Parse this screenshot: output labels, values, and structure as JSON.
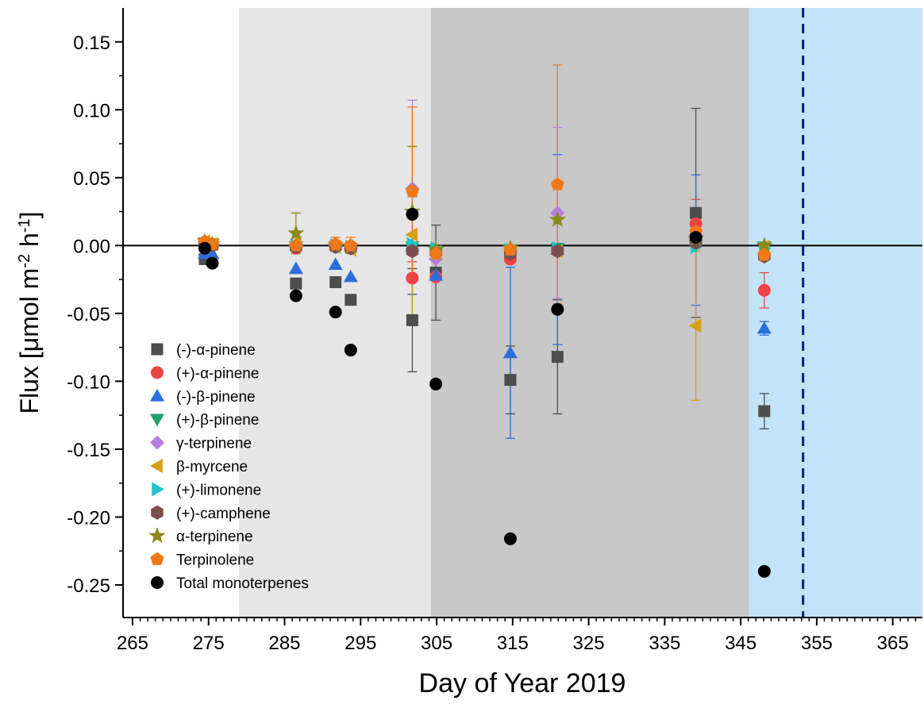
{
  "chart_data": {
    "type": "scatter",
    "xlabel": "Day of Year 2019",
    "ylabel_parts": [
      "Flux [μmol m",
      "-2",
      " h",
      "-1",
      "]"
    ],
    "xlim": [
      263.75,
      368.9
    ],
    "ylim": [
      -0.274,
      0.175
    ],
    "xticks": [
      265,
      275,
      285,
      295,
      305,
      315,
      325,
      335,
      345,
      355,
      365
    ],
    "yticks": [
      0.15,
      {
        "value": 0.1,
        "label": "0.10"
      },
      0.05,
      {
        "value": 0,
        "label": "0.00"
      },
      -0.05,
      {
        "value": -0.1,
        "label": "-0.10"
      },
      -0.15,
      {
        "value": -0.2,
        "label": "-0.20"
      },
      -0.25
    ],
    "spans": [
      {
        "start": 279.0,
        "end": 304.25,
        "color": "#e6e6e6"
      },
      {
        "start": 304.25,
        "end": 346.1,
        "color": "#c8c8c8"
      },
      {
        "start": 346.1,
        "end": 368.9,
        "color": "#c3e4f8"
      }
    ],
    "vline": {
      "x": 353.2,
      "color": "#0c1f7a"
    },
    "x": [
      274.5,
      275.5,
      286.5,
      291.7,
      293.7,
      301.8,
      304.9,
      314.7,
      320.9,
      339.1,
      348.1
    ],
    "series": [
      {
        "name": "(-)-α-pinene",
        "marker": "square",
        "color": "#4d4d4d",
        "values": [
          -0.01,
          0.001,
          -0.028,
          -0.027,
          -0.04,
          -0.055,
          -0.02,
          -0.099,
          -0.082,
          0.024,
          -0.122
        ],
        "errors": [
          null,
          null,
          0.003,
          0.004,
          null,
          0.038,
          0.035,
          0.025,
          0.042,
          0.077,
          0.013
        ]
      },
      {
        "name": "(+)-α-pinene",
        "marker": "circle",
        "color": "#ef4444",
        "values": [
          0.002,
          0.0,
          -0.002,
          0.0,
          -0.002,
          -0.024,
          -0.023,
          -0.01,
          -0.003,
          0.016,
          -0.033
        ],
        "errors": [
          null,
          null,
          null,
          null,
          null,
          0.012,
          null,
          null,
          null,
          0.018,
          0.013
        ]
      },
      {
        "name": "(-)-β-pinene",
        "marker": "tri-up",
        "color": "#2a6fdb",
        "values": [
          -0.006,
          -0.006,
          -0.017,
          -0.014,
          -0.023,
          0.0,
          -0.022,
          -0.079,
          -0.003,
          0.004,
          -0.061
        ],
        "errors": [
          null,
          null,
          null,
          null,
          null,
          0.036,
          null,
          0.063,
          0.07,
          0.048,
          0.005
        ]
      },
      {
        "name": "(+)-β-pinene",
        "marker": "tri-down",
        "color": "#22a06b",
        "values": [
          0.002,
          0.001,
          -0.001,
          -0.001,
          -0.002,
          -0.001,
          -0.004,
          -0.003,
          -0.002,
          0.0,
          -0.001
        ],
        "errors": [
          null,
          null,
          null,
          null,
          null,
          null,
          null,
          null,
          null,
          null,
          null
        ]
      },
      {
        "name": "γ-terpinene",
        "marker": "diamond",
        "color": "#b57edc",
        "values": [
          0.002,
          0.001,
          0.0,
          0.0,
          -0.002,
          0.042,
          -0.01,
          -0.004,
          0.024,
          0.008,
          -0.007
        ],
        "errors": [
          null,
          null,
          null,
          null,
          null,
          0.065,
          null,
          null,
          0.063,
          null,
          null
        ]
      },
      {
        "name": "β-myrcene",
        "marker": "tri-left",
        "color": "#d4a017",
        "values": [
          0.003,
          0.001,
          0.002,
          -0.001,
          -0.003,
          0.008,
          -0.005,
          -0.004,
          -0.004,
          -0.059,
          -0.001
        ],
        "errors": [
          null,
          null,
          null,
          null,
          null,
          0.065,
          null,
          null,
          null,
          0.055,
          null
        ]
      },
      {
        "name": "(+)-limonene",
        "marker": "tri-right",
        "color": "#1fc4c8",
        "values": [
          0.001,
          0.0,
          0.0,
          0.0,
          -0.001,
          0.001,
          -0.002,
          -0.003,
          -0.002,
          -0.001,
          -0.002
        ],
        "errors": [
          null,
          null,
          null,
          null,
          null,
          null,
          null,
          null,
          null,
          null,
          null
        ]
      },
      {
        "name": "(+)-camphene",
        "marker": "hexagon",
        "color": "#7b4f4f",
        "values": [
          0.001,
          0.0,
          -0.001,
          -0.001,
          -0.002,
          -0.004,
          -0.005,
          -0.006,
          -0.004,
          0.002,
          -0.008
        ],
        "errors": [
          null,
          null,
          null,
          null,
          null,
          null,
          null,
          null,
          null,
          null,
          null
        ]
      },
      {
        "name": "α-terpinene",
        "marker": "star",
        "color": "#8a8a1a",
        "values": [
          0.003,
          0.001,
          0.009,
          0.0,
          -0.001,
          0.025,
          -0.003,
          -0.002,
          0.019,
          0.005,
          0.0
        ],
        "errors": [
          null,
          null,
          0.015,
          null,
          null,
          0.048,
          null,
          null,
          null,
          null,
          null
        ]
      },
      {
        "name": "Terpinolene",
        "marker": "pentagon",
        "color": "#f07818",
        "values": [
          0.003,
          0.001,
          0.0,
          0.001,
          0.0,
          0.04,
          -0.006,
          -0.003,
          0.045,
          0.01,
          -0.007
        ],
        "errors": [
          null,
          null,
          null,
          0.005,
          0.006,
          0.062,
          null,
          null,
          0.088,
          null,
          null
        ]
      },
      {
        "name": "Total monoterpenes",
        "marker": "circle",
        "color": "#000000",
        "values": [
          -0.002,
          -0.013,
          -0.037,
          -0.049,
          -0.077,
          0.023,
          -0.102,
          -0.216,
          -0.047,
          0.006,
          -0.24
        ],
        "errors": [
          null,
          null,
          null,
          null,
          null,
          null,
          null,
          null,
          null,
          null,
          null
        ]
      }
    ]
  }
}
